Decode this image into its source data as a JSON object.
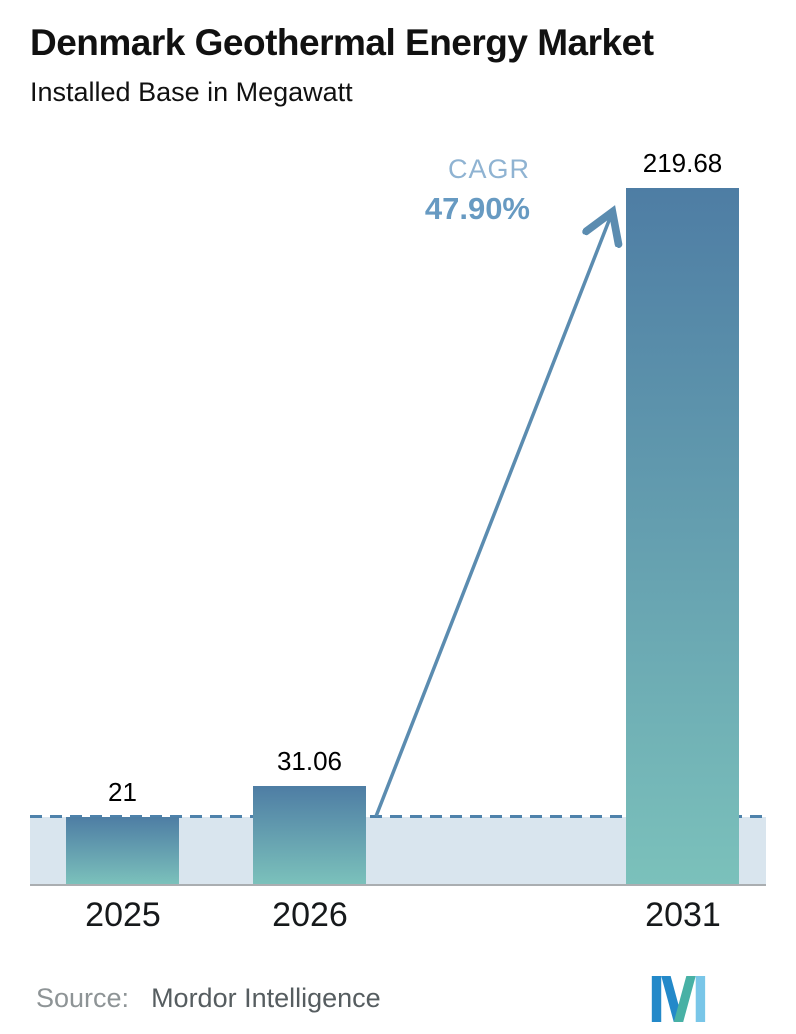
{
  "chart_data": {
    "type": "bar",
    "title": "Denmark Geothermal Energy Market",
    "subtitle": "Installed Base in Megawatt",
    "categories": [
      "2025",
      "2026",
      "2031"
    ],
    "values": [
      21,
      31.06,
      219.68
    ],
    "value_labels": [
      "21",
      "31.06",
      "219.68"
    ],
    "ylim": [
      0,
      219.68
    ],
    "grid": false,
    "legend": false,
    "band_value": 21,
    "band_style": "light band from baseline up to first-year level with dashed top line",
    "annotations": {
      "cagr_label": "CAGR",
      "cagr_value": "47.90%",
      "arrow": "diagonal arrow from 2026 bar up to top of 2031 bar"
    }
  },
  "colors": {
    "bar_gradient_top": "#4e7da4",
    "bar_gradient_bottom": "#7bc1bb",
    "band": "#d9e5ee",
    "dashed_line": "#4e82ab",
    "arrow": "#5b8cb0",
    "cagr_label": "#8fb3d2",
    "cagr_value": "#679ac2",
    "axis_line": "#aaaeb1",
    "logo_blue": "#2389c9",
    "logo_teal": "#48b1a5",
    "logo_light_blue": "#79c6e8"
  },
  "footer": {
    "source_label": "Source:",
    "source_value": "Mordor Intelligence",
    "logo_icon": "mordor-intelligence-logo"
  }
}
